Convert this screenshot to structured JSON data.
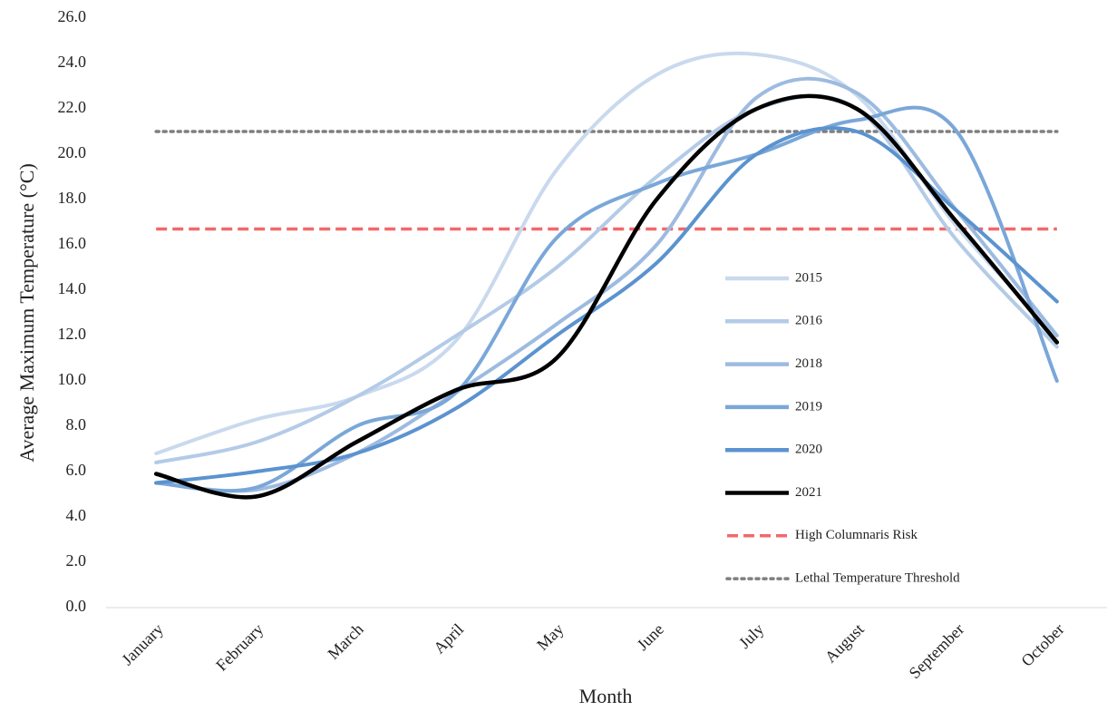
{
  "chart_data": {
    "type": "line",
    "x_label": "Month",
    "y_label": "Average Maximum Temperature (°C)",
    "categories": [
      "January",
      "February",
      "March",
      "April",
      "May",
      "June",
      "July",
      "August",
      "September",
      "October"
    ],
    "series": [
      {
        "name": "2015",
        "color": "#c9d9ee",
        "values": [
          6.8,
          8.3,
          9.3,
          11.8,
          19.3,
          23.5,
          24.4,
          22.6,
          16.8,
          12.0
        ]
      },
      {
        "name": "2016",
        "color": "#b3cbe7",
        "values": [
          6.4,
          7.3,
          9.3,
          12.0,
          15.0,
          19.0,
          22.0,
          22.0,
          16.2,
          11.5
        ]
      },
      {
        "name": "2018",
        "color": "#9dbbe0",
        "values": [
          5.5,
          5.2,
          6.8,
          9.5,
          12.5,
          16.0,
          22.5,
          22.7,
          17.5,
          12.0
        ]
      },
      {
        "name": "2019",
        "color": "#7aa7d8",
        "values": [
          5.5,
          5.3,
          8.0,
          9.5,
          16.3,
          18.7,
          20.0,
          21.5,
          21.0,
          10.0
        ]
      },
      {
        "name": "2020",
        "color": "#5b93cf",
        "values": [
          5.5,
          6.0,
          6.8,
          8.8,
          12.0,
          15.2,
          20.0,
          21.0,
          17.5,
          13.5
        ]
      },
      {
        "name": "2021",
        "color": "#000000",
        "values": [
          5.9,
          4.9,
          7.3,
          9.6,
          11.0,
          18.0,
          22.0,
          22.0,
          17.0,
          11.7
        ]
      }
    ],
    "reference_lines": [
      {
        "name": "High Columnaris Risk",
        "value": 16.7,
        "color": "#f4686b",
        "dash": "dashed"
      },
      {
        "name": "Lethal Temperature Threshold",
        "value": 21.0,
        "color": "#7f7f7f",
        "dash": "dotted"
      }
    ],
    "ylim": [
      0,
      26
    ],
    "yticks": [
      {
        "value": 0,
        "label": "0.0"
      },
      {
        "value": 2,
        "label": "2.0"
      },
      {
        "value": 4,
        "label": "4.0"
      },
      {
        "value": 6,
        "label": "6.0"
      },
      {
        "value": 8,
        "label": "8.0"
      },
      {
        "value": 10,
        "label": "10.0"
      },
      {
        "value": 12,
        "label": "12.0"
      },
      {
        "value": 14,
        "label": "14.0"
      },
      {
        "value": 16,
        "label": "16.0"
      },
      {
        "value": 18,
        "label": "18.0"
      },
      {
        "value": 20,
        "label": "20.0"
      },
      {
        "value": 22,
        "label": "22.0"
      },
      {
        "value": 24,
        "label": "24.0"
      },
      {
        "value": 26,
        "label": "26.0"
      }
    ],
    "grid": false,
    "smooth": true,
    "legend": "right"
  }
}
